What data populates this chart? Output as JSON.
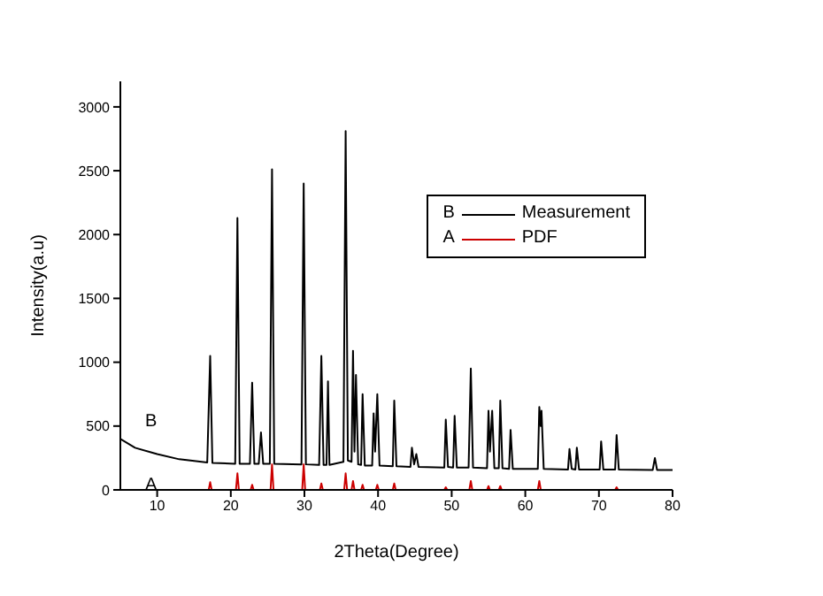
{
  "chart_data": {
    "type": "line",
    "xlabel": "2Theta(Degree)",
    "ylabel": "Intensity(a.u)",
    "xlim": [
      5,
      80
    ],
    "ylim": [
      0,
      3200
    ],
    "xticks": [
      10,
      20,
      30,
      40,
      50,
      60,
      70,
      80
    ],
    "yticks": [
      0,
      500,
      1000,
      1500,
      2000,
      2500,
      3000
    ],
    "grid": false,
    "legend": "top right",
    "marker": "none",
    "line_style": "solid",
    "annotations": [
      "B",
      "A"
    ],
    "series": [
      {
        "name": "Measurement",
        "color": "#000000",
        "x": [
          5,
          7,
          10,
          13,
          16.8,
          17.2,
          17.5,
          20.6,
          20.9,
          21.2,
          22.6,
          22.9,
          23.2,
          23.8,
          24.1,
          24.4,
          25.3,
          25.6,
          25.9,
          29.6,
          29.9,
          30.2,
          32.0,
          32.3,
          32.6,
          33.0,
          33.2,
          33.4,
          35.3,
          35.6,
          35.9,
          36.4,
          36.6,
          36.8,
          37.0,
          37.3,
          37.7,
          37.9,
          38.2,
          39.2,
          39.4,
          39.6,
          39.9,
          40.2,
          42.0,
          42.2,
          42.5,
          44.4,
          44.6,
          44.9,
          45.2,
          45.5,
          49.0,
          49.2,
          49.5,
          50.2,
          50.4,
          50.7,
          52.3,
          52.6,
          52.9,
          54.8,
          55.0,
          55.2,
          55.5,
          55.8,
          56.4,
          56.6,
          56.9,
          57.8,
          58.0,
          58.3,
          61.7,
          61.9,
          62.1,
          62.2,
          62.5,
          65.8,
          66.0,
          66.3,
          66.8,
          67.0,
          67.3,
          70.1,
          70.3,
          70.6,
          72.2,
          72.4,
          72.7,
          77.3,
          77.6,
          77.9,
          80
        ],
        "values": [
          400,
          330,
          280,
          240,
          215,
          1050,
          212,
          205,
          2130,
          205,
          205,
          840,
          205,
          205,
          450,
          205,
          205,
          2510,
          205,
          200,
          2400,
          200,
          195,
          1050,
          195,
          195,
          850,
          195,
          220,
          2810,
          230,
          220,
          1090,
          300,
          900,
          200,
          195,
          750,
          190,
          190,
          600,
          300,
          750,
          190,
          185,
          700,
          185,
          180,
          330,
          200,
          280,
          180,
          175,
          550,
          180,
          175,
          580,
          175,
          175,
          950,
          175,
          170,
          620,
          300,
          620,
          170,
          170,
          700,
          170,
          165,
          470,
          165,
          165,
          650,
          500,
          620,
          165,
          160,
          320,
          165,
          160,
          330,
          160,
          160,
          380,
          160,
          160,
          430,
          160,
          155,
          250,
          155,
          155
        ]
      },
      {
        "name": "PDF",
        "color": "#cc0000",
        "x": [
          5,
          17.0,
          17.2,
          17.4,
          20.7,
          20.9,
          21.1,
          22.7,
          22.9,
          23.1,
          25.4,
          25.6,
          25.8,
          29.7,
          29.9,
          30.1,
          32.1,
          32.3,
          32.5,
          35.4,
          35.6,
          35.8,
          36.4,
          36.6,
          36.8,
          37.7,
          37.9,
          38.1,
          39.7,
          39.9,
          40.1,
          42.0,
          42.2,
          42.4,
          49.0,
          49.2,
          49.4,
          52.4,
          52.6,
          52.8,
          54.8,
          55.0,
          55.2,
          56.4,
          56.6,
          56.8,
          61.7,
          61.9,
          62.1,
          72.2,
          72.4,
          72.6,
          80
        ],
        "values": [
          0,
          0,
          60,
          0,
          0,
          130,
          0,
          0,
          40,
          0,
          0,
          200,
          0,
          0,
          200,
          0,
          0,
          50,
          0,
          0,
          130,
          0,
          0,
          70,
          0,
          0,
          40,
          0,
          0,
          40,
          0,
          0,
          50,
          0,
          0,
          20,
          0,
          0,
          70,
          0,
          0,
          30,
          0,
          0,
          30,
          0,
          0,
          70,
          0,
          0,
          20,
          0,
          0
        ]
      }
    ]
  }
}
